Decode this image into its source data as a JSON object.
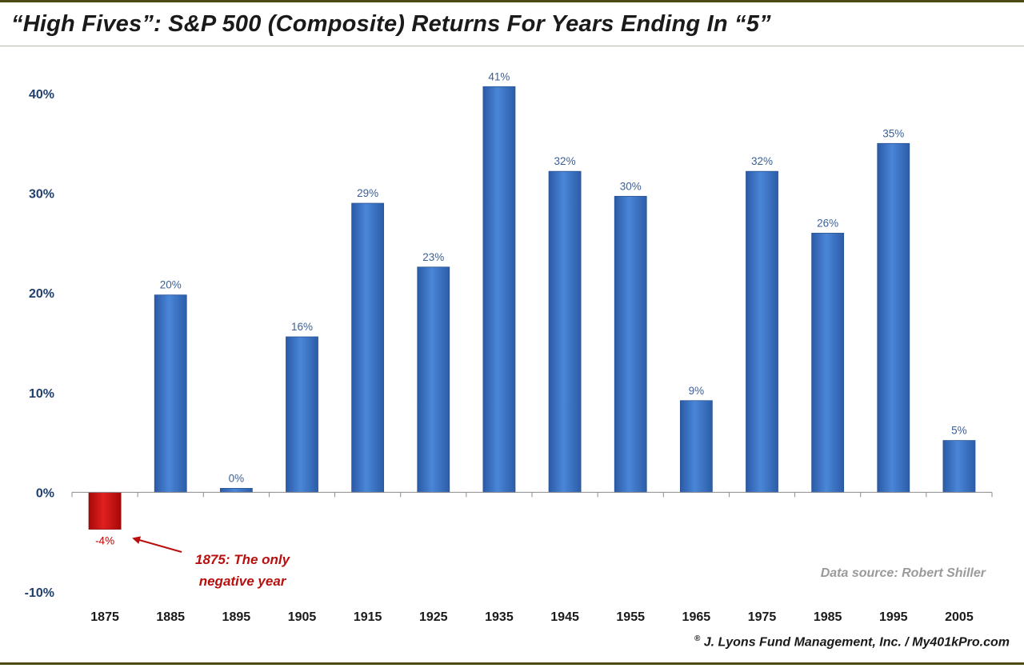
{
  "chart_data": {
    "type": "bar",
    "title": "“High Fives”: S&P 500 (Composite) Returns For Years Ending In “5”",
    "xlabel": "",
    "ylabel": "",
    "categories": [
      "1875",
      "1885",
      "1895",
      "1905",
      "1915",
      "1925",
      "1935",
      "1945",
      "1955",
      "1965",
      "1975",
      "1985",
      "1995",
      "2005"
    ],
    "values": [
      -3.7,
      19.8,
      0.4,
      15.6,
      29.0,
      22.6,
      40.7,
      32.2,
      29.7,
      9.2,
      32.2,
      26.0,
      35.0,
      5.2
    ],
    "data_labels": [
      "-4%",
      "20%",
      "0%",
      "16%",
      "29%",
      "23%",
      "41%",
      "32%",
      "30%",
      "9%",
      "32%",
      "26%",
      "35%",
      "5%"
    ],
    "ylim": [
      -10,
      40
    ],
    "yticks": [
      -10,
      0,
      10,
      20,
      30,
      40
    ],
    "ytick_labels": [
      "-10%",
      "0%",
      "10%",
      "20%",
      "30%",
      "40%"
    ],
    "grid": false,
    "legend": "none",
    "colors": {
      "positive": "#3d72c4",
      "negative": "#c81414",
      "annotation": "#b80f0f"
    },
    "annotation": {
      "category": "1875",
      "line1": "1875: The only",
      "line2": "negative year"
    }
  },
  "footer": {
    "source": "Data source: Robert Shiller",
    "copyright_mark": "®",
    "copyright_text": "J. Lyons Fund Management, Inc. / My401kPro.com"
  }
}
